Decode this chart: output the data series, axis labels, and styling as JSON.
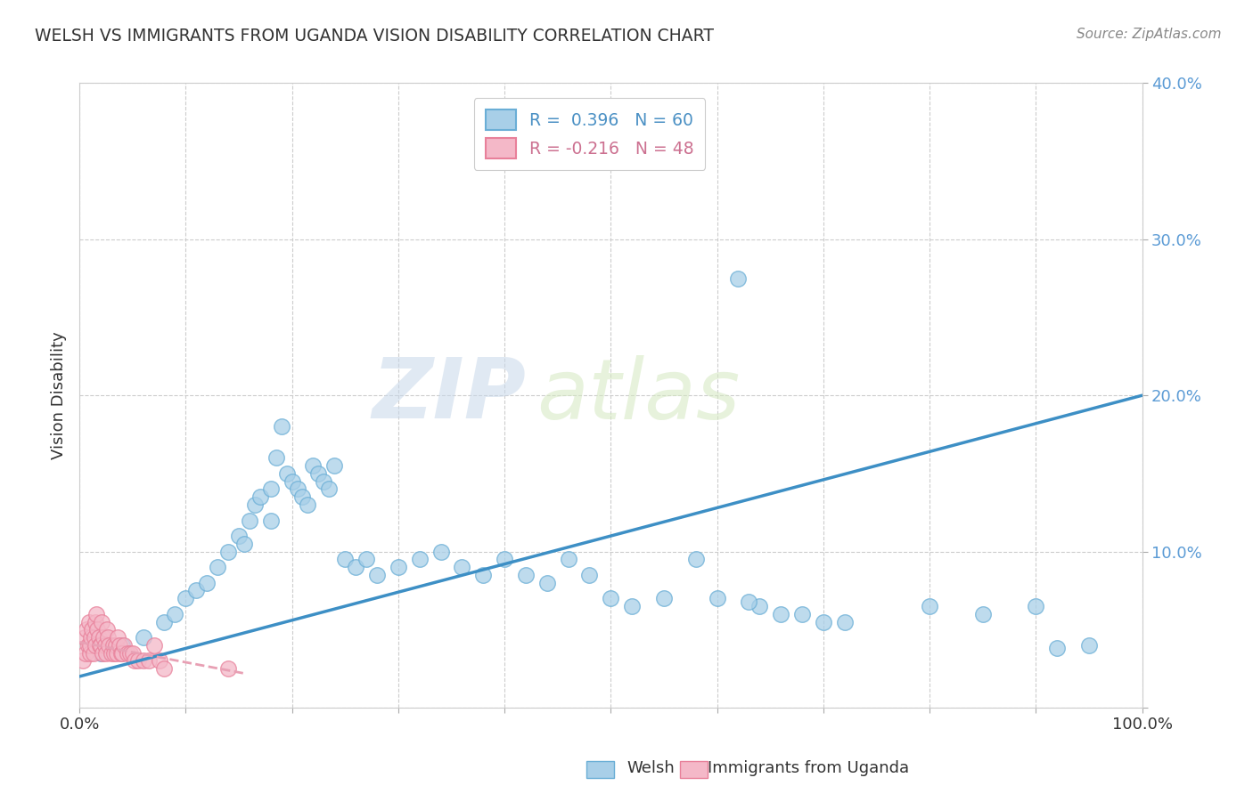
{
  "title": "WELSH VS IMMIGRANTS FROM UGANDA VISION DISABILITY CORRELATION CHART",
  "source": "Source: ZipAtlas.com",
  "ylabel": "Vision Disability",
  "xlim": [
    0,
    1.0
  ],
  "ylim": [
    0,
    0.4
  ],
  "xticks": [
    0.0,
    0.1,
    0.2,
    0.3,
    0.4,
    0.5,
    0.6,
    0.7,
    0.8,
    0.9,
    1.0
  ],
  "xticklabels": [
    "0.0%",
    "",
    "",
    "",
    "",
    "",
    "",
    "",
    "",
    "",
    "100.0%"
  ],
  "yticks": [
    0.0,
    0.1,
    0.2,
    0.3,
    0.4
  ],
  "yticklabels": [
    "",
    "10.0%",
    "20.0%",
    "30.0%",
    "40.0%"
  ],
  "welsh_R": 0.396,
  "welsh_N": 60,
  "uganda_R": -0.216,
  "uganda_N": 48,
  "welsh_color": "#a8cfe8",
  "uganda_color": "#f4b8c8",
  "welsh_edge_color": "#6aaed6",
  "uganda_edge_color": "#e8809a",
  "welsh_line_color": "#3d8fc5",
  "uganda_line_color": "#e8a0b4",
  "background_color": "#ffffff",
  "watermark_zip": "ZIP",
  "watermark_atlas": "atlas",
  "grid_color": "#cccccc",
  "title_color": "#333333",
  "ytick_color": "#5b9bd5",
  "xtick_color": "#333333",
  "source_color": "#888888",
  "legend_text_welsh": "#4a90c4",
  "legend_text_uganda": "#cc7090",
  "welsh_x": [
    0.02,
    0.04,
    0.06,
    0.08,
    0.09,
    0.1,
    0.11,
    0.12,
    0.13,
    0.14,
    0.15,
    0.155,
    0.16,
    0.165,
    0.17,
    0.18,
    0.18,
    0.185,
    0.19,
    0.195,
    0.2,
    0.205,
    0.21,
    0.215,
    0.22,
    0.225,
    0.23,
    0.235,
    0.24,
    0.25,
    0.26,
    0.27,
    0.28,
    0.3,
    0.32,
    0.34,
    0.36,
    0.38,
    0.4,
    0.42,
    0.44,
    0.46,
    0.48,
    0.5,
    0.52,
    0.55,
    0.58,
    0.6,
    0.62,
    0.64,
    0.66,
    0.68,
    0.7,
    0.63,
    0.72,
    0.8,
    0.85,
    0.9,
    0.95,
    0.92
  ],
  "welsh_y": [
    0.035,
    0.04,
    0.045,
    0.055,
    0.06,
    0.07,
    0.075,
    0.08,
    0.09,
    0.1,
    0.11,
    0.105,
    0.12,
    0.13,
    0.135,
    0.12,
    0.14,
    0.16,
    0.18,
    0.15,
    0.145,
    0.14,
    0.135,
    0.13,
    0.155,
    0.15,
    0.145,
    0.14,
    0.155,
    0.095,
    0.09,
    0.095,
    0.085,
    0.09,
    0.095,
    0.1,
    0.09,
    0.085,
    0.095,
    0.085,
    0.08,
    0.095,
    0.085,
    0.07,
    0.065,
    0.07,
    0.095,
    0.07,
    0.275,
    0.065,
    0.06,
    0.06,
    0.055,
    0.068,
    0.055,
    0.065,
    0.06,
    0.065,
    0.04,
    0.038
  ],
  "uganda_x": [
    0.003,
    0.005,
    0.006,
    0.007,
    0.008,
    0.009,
    0.01,
    0.01,
    0.011,
    0.012,
    0.013,
    0.014,
    0.015,
    0.015,
    0.016,
    0.017,
    0.018,
    0.019,
    0.02,
    0.021,
    0.022,
    0.023,
    0.024,
    0.025,
    0.026,
    0.027,
    0.028,
    0.03,
    0.032,
    0.033,
    0.034,
    0.035,
    0.036,
    0.038,
    0.039,
    0.04,
    0.042,
    0.045,
    0.048,
    0.05,
    0.052,
    0.055,
    0.06,
    0.065,
    0.07,
    0.075,
    0.08,
    0.14
  ],
  "uganda_y": [
    0.03,
    0.045,
    0.035,
    0.05,
    0.04,
    0.055,
    0.035,
    0.04,
    0.045,
    0.05,
    0.035,
    0.045,
    0.04,
    0.055,
    0.06,
    0.05,
    0.045,
    0.04,
    0.04,
    0.055,
    0.035,
    0.045,
    0.04,
    0.035,
    0.05,
    0.045,
    0.04,
    0.035,
    0.04,
    0.035,
    0.04,
    0.035,
    0.045,
    0.04,
    0.035,
    0.035,
    0.04,
    0.035,
    0.035,
    0.035,
    0.03,
    0.03,
    0.03,
    0.03,
    0.04,
    0.03,
    0.025,
    0.025
  ],
  "welsh_trend_x": [
    0.0,
    1.0
  ],
  "welsh_trend_y": [
    0.02,
    0.2
  ],
  "uganda_trend_x": [
    0.0,
    0.155
  ],
  "uganda_trend_y": [
    0.042,
    0.022
  ]
}
